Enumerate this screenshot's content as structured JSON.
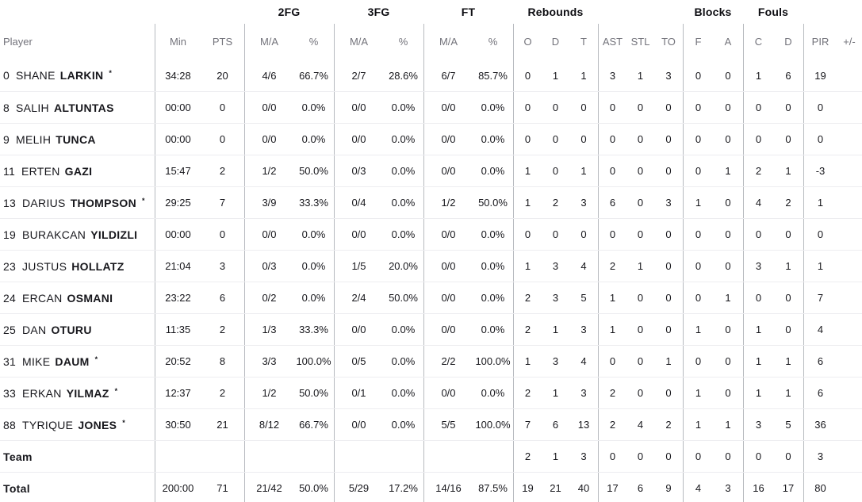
{
  "table": {
    "group_header": {
      "fg2": "2FG",
      "fg3": "3FG",
      "ft": "FT",
      "rebounds": "Rebounds",
      "blocks": "Blocks",
      "fouls": "Fouls"
    },
    "column_header": {
      "player": "Player",
      "min": "Min",
      "pts": "PTS",
      "ma": "M/A",
      "pct": "%",
      "reb_o": "O",
      "reb_d": "D",
      "reb_t": "T",
      "ast": "AST",
      "stl": "STL",
      "to": "TO",
      "blk_f": "F",
      "blk_a": "A",
      "foul_c": "C",
      "foul_d": "D",
      "pir": "PIR",
      "plus_minus": "+/-"
    },
    "colors": {
      "header_text": "#73737b",
      "body_text": "#17171c",
      "vertical_line": "#b7babf",
      "row_line": "#ededf0"
    },
    "rows": [
      {
        "num": "0",
        "first": "SHANE",
        "last": "LARKIN",
        "star": "*",
        "min": "34:28",
        "pts": "20",
        "fg2_ma": "4/6",
        "fg2_pct": "66.7%",
        "fg3_ma": "2/7",
        "fg3_pct": "28.6%",
        "ft_ma": "6/7",
        "ft_pct": "85.7%",
        "reb_o": "0",
        "reb_d": "1",
        "reb_t": "1",
        "ast": "3",
        "stl": "1",
        "to": "3",
        "blk_f": "0",
        "blk_a": "0",
        "foul_c": "1",
        "foul_d": "6",
        "pir": "19",
        "plus_minus": ""
      },
      {
        "num": "8",
        "first": "SALIH",
        "last": "ALTUNTAS",
        "star": "",
        "min": "00:00",
        "pts": "0",
        "fg2_ma": "0/0",
        "fg2_pct": "0.0%",
        "fg3_ma": "0/0",
        "fg3_pct": "0.0%",
        "ft_ma": "0/0",
        "ft_pct": "0.0%",
        "reb_o": "0",
        "reb_d": "0",
        "reb_t": "0",
        "ast": "0",
        "stl": "0",
        "to": "0",
        "blk_f": "0",
        "blk_a": "0",
        "foul_c": "0",
        "foul_d": "0",
        "pir": "0",
        "plus_minus": ""
      },
      {
        "num": "9",
        "first": "MELIH",
        "last": "TUNCA",
        "star": "",
        "min": "00:00",
        "pts": "0",
        "fg2_ma": "0/0",
        "fg2_pct": "0.0%",
        "fg3_ma": "0/0",
        "fg3_pct": "0.0%",
        "ft_ma": "0/0",
        "ft_pct": "0.0%",
        "reb_o": "0",
        "reb_d": "0",
        "reb_t": "0",
        "ast": "0",
        "stl": "0",
        "to": "0",
        "blk_f": "0",
        "blk_a": "0",
        "foul_c": "0",
        "foul_d": "0",
        "pir": "0",
        "plus_minus": ""
      },
      {
        "num": "11",
        "first": "ERTEN",
        "last": "GAZI",
        "star": "",
        "min": "15:47",
        "pts": "2",
        "fg2_ma": "1/2",
        "fg2_pct": "50.0%",
        "fg3_ma": "0/3",
        "fg3_pct": "0.0%",
        "ft_ma": "0/0",
        "ft_pct": "0.0%",
        "reb_o": "1",
        "reb_d": "0",
        "reb_t": "1",
        "ast": "0",
        "stl": "0",
        "to": "0",
        "blk_f": "0",
        "blk_a": "1",
        "foul_c": "2",
        "foul_d": "1",
        "pir": "-3",
        "plus_minus": ""
      },
      {
        "num": "13",
        "first": "DARIUS",
        "last": "THOMPSON",
        "star": "*",
        "min": "29:25",
        "pts": "7",
        "fg2_ma": "3/9",
        "fg2_pct": "33.3%",
        "fg3_ma": "0/4",
        "fg3_pct": "0.0%",
        "ft_ma": "1/2",
        "ft_pct": "50.0%",
        "reb_o": "1",
        "reb_d": "2",
        "reb_t": "3",
        "ast": "6",
        "stl": "0",
        "to": "3",
        "blk_f": "1",
        "blk_a": "0",
        "foul_c": "4",
        "foul_d": "2",
        "pir": "1",
        "plus_minus": ""
      },
      {
        "num": "19",
        "first": "BURAKCAN",
        "last": "YILDIZLI",
        "star": "",
        "min": "00:00",
        "pts": "0",
        "fg2_ma": "0/0",
        "fg2_pct": "0.0%",
        "fg3_ma": "0/0",
        "fg3_pct": "0.0%",
        "ft_ma": "0/0",
        "ft_pct": "0.0%",
        "reb_o": "0",
        "reb_d": "0",
        "reb_t": "0",
        "ast": "0",
        "stl": "0",
        "to": "0",
        "blk_f": "0",
        "blk_a": "0",
        "foul_c": "0",
        "foul_d": "0",
        "pir": "0",
        "plus_minus": ""
      },
      {
        "num": "23",
        "first": "JUSTUS",
        "last": "HOLLATZ",
        "star": "",
        "min": "21:04",
        "pts": "3",
        "fg2_ma": "0/3",
        "fg2_pct": "0.0%",
        "fg3_ma": "1/5",
        "fg3_pct": "20.0%",
        "ft_ma": "0/0",
        "ft_pct": "0.0%",
        "reb_o": "1",
        "reb_d": "3",
        "reb_t": "4",
        "ast": "2",
        "stl": "1",
        "to": "0",
        "blk_f": "0",
        "blk_a": "0",
        "foul_c": "3",
        "foul_d": "1",
        "pir": "1",
        "plus_minus": ""
      },
      {
        "num": "24",
        "first": "ERCAN",
        "last": "OSMANI",
        "star": "",
        "min": "23:22",
        "pts": "6",
        "fg2_ma": "0/2",
        "fg2_pct": "0.0%",
        "fg3_ma": "2/4",
        "fg3_pct": "50.0%",
        "ft_ma": "0/0",
        "ft_pct": "0.0%",
        "reb_o": "2",
        "reb_d": "3",
        "reb_t": "5",
        "ast": "1",
        "stl": "0",
        "to": "0",
        "blk_f": "0",
        "blk_a": "1",
        "foul_c": "0",
        "foul_d": "0",
        "pir": "7",
        "plus_minus": ""
      },
      {
        "num": "25",
        "first": "DAN",
        "last": "OTURU",
        "star": "",
        "min": "11:35",
        "pts": "2",
        "fg2_ma": "1/3",
        "fg2_pct": "33.3%",
        "fg3_ma": "0/0",
        "fg3_pct": "0.0%",
        "ft_ma": "0/0",
        "ft_pct": "0.0%",
        "reb_o": "2",
        "reb_d": "1",
        "reb_t": "3",
        "ast": "1",
        "stl": "0",
        "to": "0",
        "blk_f": "1",
        "blk_a": "0",
        "foul_c": "1",
        "foul_d": "0",
        "pir": "4",
        "plus_minus": ""
      },
      {
        "num": "31",
        "first": "MIKE",
        "last": "DAUM",
        "star": "*",
        "min": "20:52",
        "pts": "8",
        "fg2_ma": "3/3",
        "fg2_pct": "100.0%",
        "fg3_ma": "0/5",
        "fg3_pct": "0.0%",
        "ft_ma": "2/2",
        "ft_pct": "100.0%",
        "reb_o": "1",
        "reb_d": "3",
        "reb_t": "4",
        "ast": "0",
        "stl": "0",
        "to": "1",
        "blk_f": "0",
        "blk_a": "0",
        "foul_c": "1",
        "foul_d": "1",
        "pir": "6",
        "plus_minus": ""
      },
      {
        "num": "33",
        "first": "ERKAN",
        "last": "YILMAZ",
        "star": "*",
        "min": "12:37",
        "pts": "2",
        "fg2_ma": "1/2",
        "fg2_pct": "50.0%",
        "fg3_ma": "0/1",
        "fg3_pct": "0.0%",
        "ft_ma": "0/0",
        "ft_pct": "0.0%",
        "reb_o": "2",
        "reb_d": "1",
        "reb_t": "3",
        "ast": "2",
        "stl": "0",
        "to": "0",
        "blk_f": "1",
        "blk_a": "0",
        "foul_c": "1",
        "foul_d": "1",
        "pir": "6",
        "plus_minus": ""
      },
      {
        "num": "88",
        "first": "TYRIQUE",
        "last": "JONES",
        "star": "*",
        "min": "30:50",
        "pts": "21",
        "fg2_ma": "8/12",
        "fg2_pct": "66.7%",
        "fg3_ma": "0/0",
        "fg3_pct": "0.0%",
        "ft_ma": "5/5",
        "ft_pct": "100.0%",
        "reb_o": "7",
        "reb_d": "6",
        "reb_t": "13",
        "ast": "2",
        "stl": "4",
        "to": "2",
        "blk_f": "1",
        "blk_a": "1",
        "foul_c": "3",
        "foul_d": "5",
        "pir": "36",
        "plus_minus": ""
      },
      {
        "num": "",
        "first": "",
        "last": "Team",
        "star": "",
        "min": "",
        "pts": "",
        "fg2_ma": "",
        "fg2_pct": "",
        "fg3_ma": "",
        "fg3_pct": "",
        "ft_ma": "",
        "ft_pct": "",
        "reb_o": "2",
        "reb_d": "1",
        "reb_t": "3",
        "ast": "0",
        "stl": "0",
        "to": "0",
        "blk_f": "0",
        "blk_a": "0",
        "foul_c": "0",
        "foul_d": "0",
        "pir": "3",
        "plus_minus": ""
      },
      {
        "num": "",
        "first": "",
        "last": "Total",
        "star": "",
        "min": "200:00",
        "pts": "71",
        "fg2_ma": "21/42",
        "fg2_pct": "50.0%",
        "fg3_ma": "5/29",
        "fg3_pct": "17.2%",
        "ft_ma": "14/16",
        "ft_pct": "87.5%",
        "reb_o": "19",
        "reb_d": "21",
        "reb_t": "40",
        "ast": "17",
        "stl": "6",
        "to": "9",
        "blk_f": "4",
        "blk_a": "3",
        "foul_c": "16",
        "foul_d": "17",
        "pir": "80",
        "plus_minus": ""
      }
    ]
  }
}
